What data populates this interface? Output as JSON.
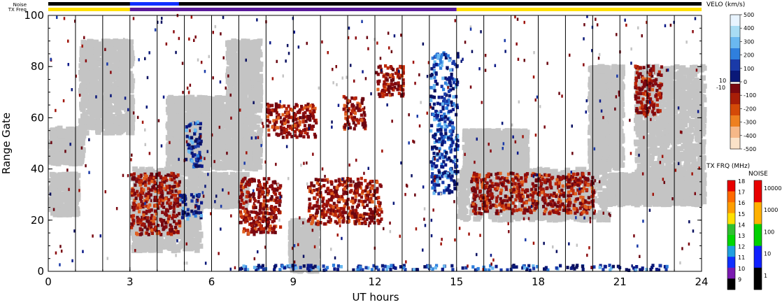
{
  "chart_data": {
    "type": "heatmap",
    "xlabel": "UT hours",
    "ylabel": "Range Gate",
    "xlim": [
      0,
      24
    ],
    "ylim": [
      0,
      100
    ],
    "x_ticks": [
      "0",
      "3",
      "6",
      "9",
      "12",
      "15",
      "18",
      "21",
      "24"
    ],
    "y_ticks": [
      "0",
      "20",
      "40",
      "60",
      "80",
      "100"
    ],
    "grid": "vertical lines every hour",
    "status_bars": {
      "noise_label": "Noise",
      "txfreq_label": "TX Freq",
      "txfreq_segments": [
        {
          "start": 0,
          "end": 3,
          "value_mhz": 15
        },
        {
          "start": 3,
          "end": 15,
          "value_mhz": 10
        },
        {
          "start": 15,
          "end": 24,
          "value_mhz": 15
        }
      ]
    },
    "velocity_colorbar": {
      "title": "VELO (km/s)",
      "ticks": [
        "500",
        "400",
        "300",
        "200",
        "100",
        "0",
        "-100",
        "-200",
        "-300",
        "-400",
        "-500"
      ],
      "small_ticks": [
        "10",
        "-10"
      ],
      "colors": [
        "#e8f4ff",
        "#a8dcf4",
        "#6ab8f0",
        "#2f7fdd",
        "#1a3aa8",
        "#0a1878",
        "#7a0810",
        "#a81e08",
        "#d44a08",
        "#ee8020",
        "#f6b888",
        "#fbe2c8"
      ]
    },
    "txfreq_colorbar": {
      "title": "TX FRQ (MHz)",
      "ticks": [
        "18",
        "17",
        "16",
        "15",
        "14",
        "13",
        "12",
        "11",
        "10",
        "9"
      ],
      "colors": [
        "#e80000",
        "#ff6a00",
        "#ff9e00",
        "#ffe000",
        "#30c030",
        "#00d800",
        "#20a0e0",
        "#1030ff",
        "#7a1ab0",
        "#000000"
      ]
    },
    "noise_colorbar": {
      "title": "NOISE",
      "ticks": [
        "10000",
        "1000",
        "100",
        "10",
        "1"
      ],
      "colors": [
        "#e80000",
        "#ffb000",
        "#00d000",
        "#1020ff",
        "#000000"
      ]
    },
    "series": [
      {
        "name": "ground-scatter",
        "color": "#c4c4c4"
      },
      {
        "name": "velocity",
        "color": "#0a1878"
      }
    ],
    "regions": [
      {
        "kind": "ground",
        "x": [
          0.0,
          1.0
        ],
        "y": [
          22,
          38
        ]
      },
      {
        "kind": "ground",
        "x": [
          0.0,
          1.2
        ],
        "y": [
          42,
          56
        ]
      },
      {
        "kind": "ground",
        "x": [
          1.1,
          3.0
        ],
        "y": [
          54,
          90
        ]
      },
      {
        "kind": "ground",
        "x": [
          3.0,
          5.5
        ],
        "y": [
          8,
          40
        ]
      },
      {
        "kind": "ground",
        "x": [
          4.3,
          6.5
        ],
        "y": [
          40,
          68
        ]
      },
      {
        "kind": "ground",
        "x": [
          5.5,
          7.2
        ],
        "y": [
          25,
          38
        ]
      },
      {
        "kind": "ground",
        "x": [
          6.5,
          7.7
        ],
        "y": [
          40,
          90
        ]
      },
      {
        "kind": "ground",
        "x": [
          8.8,
          9.8
        ],
        "y": [
          0,
          20
        ]
      },
      {
        "kind": "ground",
        "x": [
          15.0,
          20.5
        ],
        "y": [
          20,
          40
        ]
      },
      {
        "kind": "ground",
        "x": [
          15.2,
          17.5
        ],
        "y": [
          38,
          55
        ]
      },
      {
        "kind": "ground",
        "x": [
          19.8,
          21.0
        ],
        "y": [
          40,
          80
        ]
      },
      {
        "kind": "ground",
        "x": [
          20.5,
          24.0
        ],
        "y": [
          26,
          38
        ]
      },
      {
        "kind": "ground",
        "x": [
          21.5,
          24.0
        ],
        "y": [
          38,
          80
        ]
      },
      {
        "kind": "neg",
        "x": [
          3.0,
          4.8
        ],
        "y": [
          14,
          38
        ]
      },
      {
        "kind": "neg",
        "x": [
          7.0,
          8.5
        ],
        "y": [
          14,
          36
        ]
      },
      {
        "kind": "neg",
        "x": [
          8.0,
          9.8
        ],
        "y": [
          52,
          65
        ]
      },
      {
        "kind": "neg",
        "x": [
          9.5,
          12.2
        ],
        "y": [
          18,
          36
        ]
      },
      {
        "kind": "neg",
        "x": [
          10.8,
          11.6
        ],
        "y": [
          55,
          68
        ]
      },
      {
        "kind": "neg",
        "x": [
          12.0,
          13.0
        ],
        "y": [
          68,
          80
        ]
      },
      {
        "kind": "neg",
        "x": [
          15.5,
          20.0
        ],
        "y": [
          22,
          38
        ]
      },
      {
        "kind": "neg",
        "x": [
          21.5,
          22.5
        ],
        "y": [
          60,
          80
        ]
      },
      {
        "kind": "pos",
        "x": [
          5.0,
          5.6
        ],
        "y": [
          40,
          58
        ]
      },
      {
        "kind": "pos",
        "x": [
          14.0,
          15.0
        ],
        "y": [
          30,
          85
        ]
      },
      {
        "kind": "pos",
        "x": [
          7.0,
          23.0
        ],
        "y": [
          0,
          2
        ]
      },
      {
        "kind": "pos",
        "x": [
          4.8,
          5.6
        ],
        "y": [
          20,
          30
        ]
      }
    ]
  }
}
